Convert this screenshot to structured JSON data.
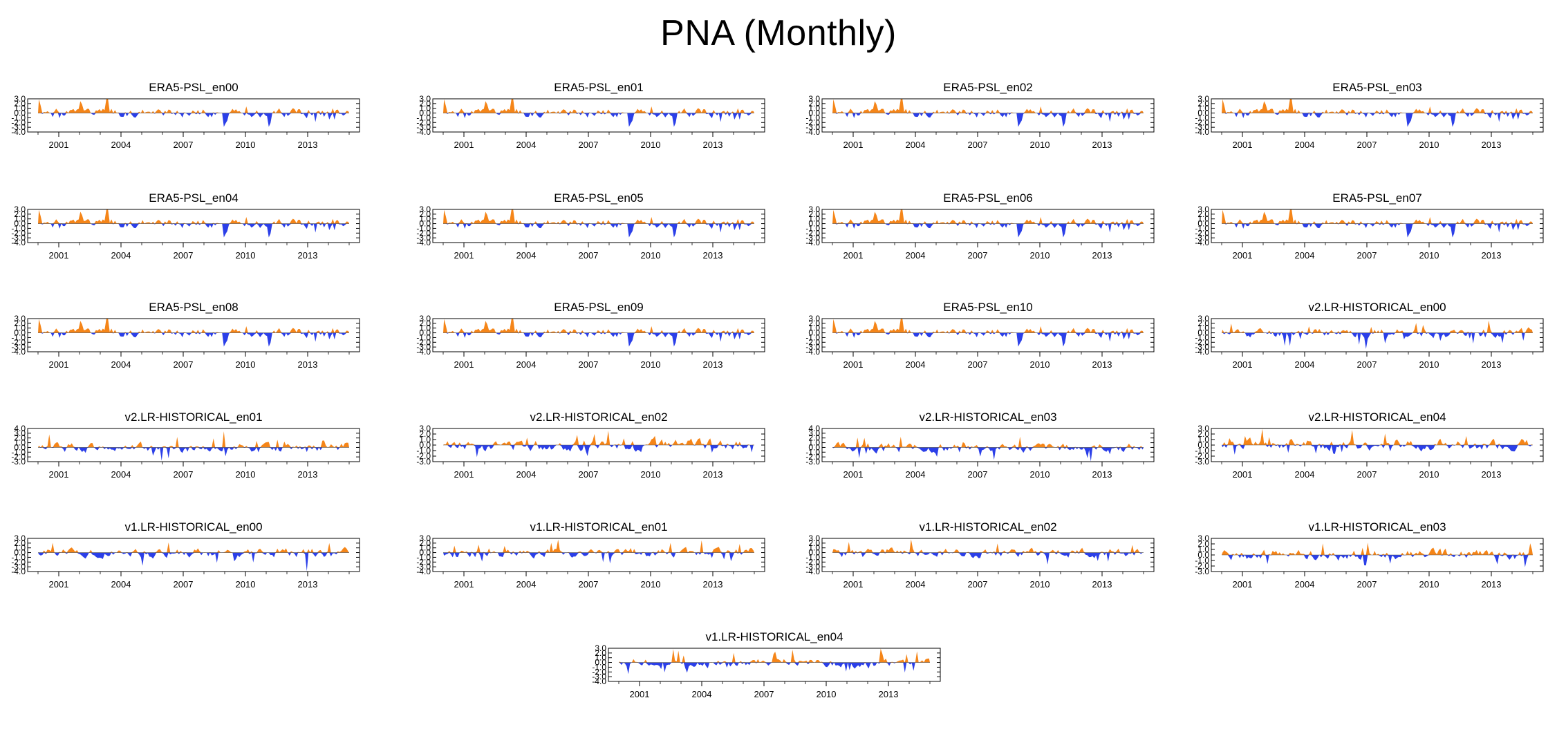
{
  "title": "PNA (Monthly)",
  "colors": {
    "positive": "#f58518",
    "negative": "#2b3fe8",
    "axis": "#000000"
  },
  "chart_data": {
    "type": "area",
    "description_layout": "21 panels arranged 4 per row, last panel centered",
    "x_tick_labels": [
      "2001",
      "2004",
      "2007",
      "2010",
      "2013"
    ],
    "x_ticks": [
      2001,
      2004,
      2007,
      2010,
      2013
    ],
    "xlim": [
      1999.5,
      2015.5
    ],
    "zero_line": true,
    "fill_above_zero": "positive",
    "fill_below_zero": "negative",
    "panels": [
      {
        "title": "ERA5-PSL_en00",
        "ylim": [
          -4,
          3
        ],
        "y_ticks": [
          "3.0",
          "2.0",
          "1.0",
          "0.0",
          "-1.0",
          "-2.0",
          "-3.0",
          "-4.0"
        ],
        "dataset": "era5",
        "seed": 1
      },
      {
        "title": "ERA5-PSL_en01",
        "ylim": [
          -4,
          3
        ],
        "y_ticks": [
          "3.0",
          "2.0",
          "1.0",
          "0.0",
          "-1.0",
          "-2.0",
          "-3.0",
          "-4.0"
        ],
        "dataset": "era5",
        "seed": 1
      },
      {
        "title": "ERA5-PSL_en02",
        "ylim": [
          -4,
          3
        ],
        "y_ticks": [
          "3.0",
          "2.0",
          "1.0",
          "0.0",
          "-1.0",
          "-2.0",
          "-3.0",
          "-4.0"
        ],
        "dataset": "era5",
        "seed": 1
      },
      {
        "title": "ERA5-PSL_en03",
        "ylim": [
          -4,
          3
        ],
        "y_ticks": [
          "3.0",
          "2.0",
          "1.0",
          "0.0",
          "-1.0",
          "-2.0",
          "-3.0",
          "-4.0"
        ],
        "dataset": "era5",
        "seed": 1
      },
      {
        "title": "ERA5-PSL_en04",
        "ylim": [
          -4,
          3
        ],
        "y_ticks": [
          "3.0",
          "2.0",
          "1.0",
          "0.0",
          "-1.0",
          "-2.0",
          "-3.0",
          "-4.0"
        ],
        "dataset": "era5",
        "seed": 1
      },
      {
        "title": "ERA5-PSL_en05",
        "ylim": [
          -4,
          3
        ],
        "y_ticks": [
          "3.0",
          "2.0",
          "1.0",
          "0.0",
          "-1.0",
          "-2.0",
          "-3.0",
          "-4.0"
        ],
        "dataset": "era5",
        "seed": 1
      },
      {
        "title": "ERA5-PSL_en06",
        "ylim": [
          -4,
          3
        ],
        "y_ticks": [
          "3.0",
          "2.0",
          "1.0",
          "0.0",
          "-1.0",
          "-2.0",
          "-3.0",
          "-4.0"
        ],
        "dataset": "era5",
        "seed": 1
      },
      {
        "title": "ERA5-PSL_en07",
        "ylim": [
          -4,
          3
        ],
        "y_ticks": [
          "3.0",
          "2.0",
          "1.0",
          "0.0",
          "-1.0",
          "-2.0",
          "-3.0",
          "-4.0"
        ],
        "dataset": "era5",
        "seed": 1
      },
      {
        "title": "ERA5-PSL_en08",
        "ylim": [
          -4,
          3
        ],
        "y_ticks": [
          "3.0",
          "2.0",
          "1.0",
          "0.0",
          "-1.0",
          "-2.0",
          "-3.0",
          "-4.0"
        ],
        "dataset": "era5",
        "seed": 1
      },
      {
        "title": "ERA5-PSL_en09",
        "ylim": [
          -4,
          3
        ],
        "y_ticks": [
          "3.0",
          "2.0",
          "1.0",
          "0.0",
          "-1.0",
          "-2.0",
          "-3.0",
          "-4.0"
        ],
        "dataset": "era5",
        "seed": 1
      },
      {
        "title": "ERA5-PSL_en10",
        "ylim": [
          -4,
          3
        ],
        "y_ticks": [
          "3.0",
          "2.0",
          "1.0",
          "0.0",
          "-1.0",
          "-2.0",
          "-3.0",
          "-4.0"
        ],
        "dataset": "era5",
        "seed": 1
      },
      {
        "title": "v2.LR-HISTORICAL_en00",
        "ylim": [
          -4,
          3
        ],
        "y_ticks": [
          "3.0",
          "2.0",
          "1.0",
          "0.0",
          "-1.0",
          "-2.0",
          "-3.0",
          "-4.0"
        ],
        "dataset": "model",
        "seed": 11
      },
      {
        "title": "v2.LR-HISTORICAL_en01",
        "ylim": [
          -3,
          4
        ],
        "y_ticks": [
          "4.0",
          "3.0",
          "2.0",
          "1.0",
          "0.0",
          "-1.0",
          "-2.0",
          "-3.0"
        ],
        "dataset": "model",
        "seed": 12,
        "peak": [
          2008.9,
          3.4
        ]
      },
      {
        "title": "v2.LR-HISTORICAL_en02",
        "ylim": [
          -3,
          3
        ],
        "y_ticks": [
          "3.0",
          "2.0",
          "1.0",
          "0.0",
          "-1.0",
          "-2.0",
          "-3.0"
        ],
        "dataset": "model",
        "seed": 13
      },
      {
        "title": "v2.LR-HISTORICAL_en03",
        "ylim": [
          -3,
          4
        ],
        "y_ticks": [
          "4.0",
          "3.0",
          "2.0",
          "1.0",
          "0.0",
          "-1.0",
          "-2.0",
          "-3.0"
        ],
        "dataset": "model",
        "seed": 14
      },
      {
        "title": "v2.LR-HISTORICAL_en04",
        "ylim": [
          -3,
          3
        ],
        "y_ticks": [
          "3.0",
          "2.0",
          "1.0",
          "0.0",
          "-1.0",
          "-2.0",
          "-3.0"
        ],
        "dataset": "model",
        "seed": 15
      },
      {
        "title": "v1.LR-HISTORICAL_en00",
        "ylim": [
          -4,
          3
        ],
        "y_ticks": [
          "3.0",
          "2.0",
          "1.0",
          "0.0",
          "-1.0",
          "-2.0",
          "-3.0",
          "-4.0"
        ],
        "dataset": "model",
        "seed": 21,
        "trough": [
          2012.9,
          -4.0
        ]
      },
      {
        "title": "v1.LR-HISTORICAL_en01",
        "ylim": [
          -4,
          3
        ],
        "y_ticks": [
          "3.0",
          "2.0",
          "1.0",
          "0.0",
          "-1.0",
          "-2.0",
          "-3.0",
          "-4.0"
        ],
        "dataset": "model",
        "seed": 22
      },
      {
        "title": "v1.LR-HISTORICAL_en02",
        "ylim": [
          -4,
          3
        ],
        "y_ticks": [
          "3.0",
          "2.0",
          "1.0",
          "0.0",
          "-1.0",
          "-2.0",
          "-3.0",
          "-4.0"
        ],
        "dataset": "model",
        "seed": 23
      },
      {
        "title": "v1.LR-HISTORICAL_en03",
        "ylim": [
          -3,
          3
        ],
        "y_ticks": [
          "3.0",
          "2.0",
          "1.0",
          "0.0",
          "-1.0",
          "-2.0",
          "-3.0"
        ],
        "dataset": "model",
        "seed": 24
      },
      {
        "title": "v1.LR-HISTORICAL_en04",
        "ylim": [
          -4,
          3
        ],
        "y_ticks": [
          "3.0",
          "2.0",
          "1.0",
          "0.0",
          "-1.0",
          "-2.0",
          "-3.0",
          "-4.0"
        ],
        "dataset": "model",
        "seed": 25
      }
    ]
  }
}
